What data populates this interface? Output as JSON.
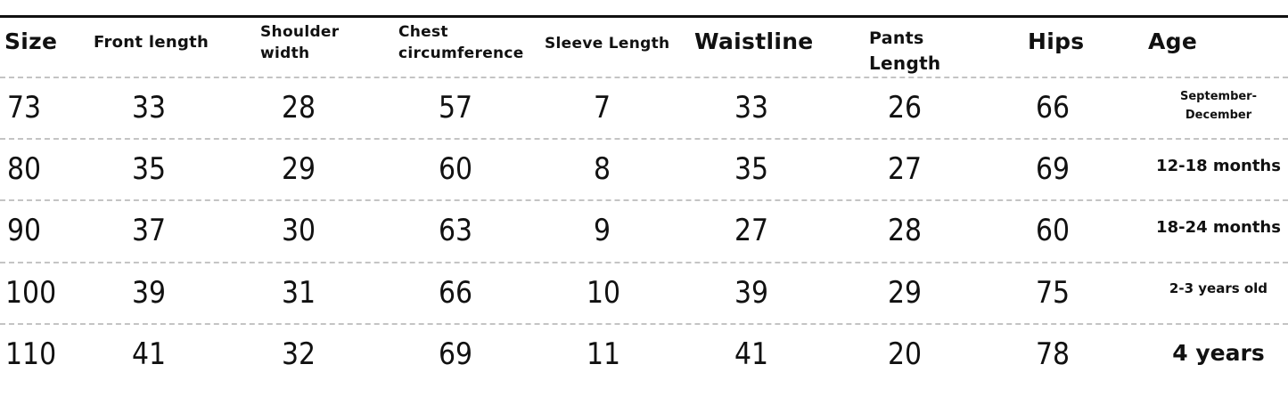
{
  "headers": [
    "Size",
    "Front length",
    "Shoulder\nwidth",
    "Chest\ncircumference",
    "Sleeve Length",
    "Waistline",
    "Pants\nLength",
    "Hips",
    "Age"
  ],
  "header_lines": {
    "shoulder": [
      "Shoulder",
      "width"
    ],
    "chest": [
      "Chest",
      "circumference"
    ],
    "pants": [
      "Pants",
      "Length"
    ]
  },
  "header_labels": {
    "size": "Size",
    "front": "Front length",
    "sleeve": "Sleeve Length",
    "waist": "Waistline",
    "hips": "Hips",
    "age": "Age"
  },
  "rows": [
    {
      "size": "73",
      "front": "33",
      "shoulder": "28",
      "chest": "57",
      "sleeve": "7",
      "waist": "33",
      "pants": "26",
      "hips": "66",
      "age": [
        "September-",
        "December"
      ]
    },
    {
      "size": "80",
      "front": "35",
      "shoulder": "29",
      "chest": "60",
      "sleeve": "8",
      "waist": "35",
      "pants": "27",
      "hips": "69",
      "age": [
        "12-18 months"
      ]
    },
    {
      "size": "90",
      "front": "37",
      "shoulder": "30",
      "chest": "63",
      "sleeve": "9",
      "waist": "27",
      "pants": "28",
      "hips": "60",
      "age": [
        "18-24 months"
      ]
    },
    {
      "size": "100",
      "front": "39",
      "shoulder": "31",
      "chest": "66",
      "sleeve": "10",
      "waist": "39",
      "pants": "29",
      "hips": "75",
      "age": [
        "2-3 years old"
      ]
    },
    {
      "size": "110",
      "front": "41",
      "shoulder": "32",
      "chest": "69",
      "sleeve": "11",
      "waist": "41",
      "pants": "20",
      "hips": "78",
      "age": [
        "4 years"
      ]
    }
  ]
}
